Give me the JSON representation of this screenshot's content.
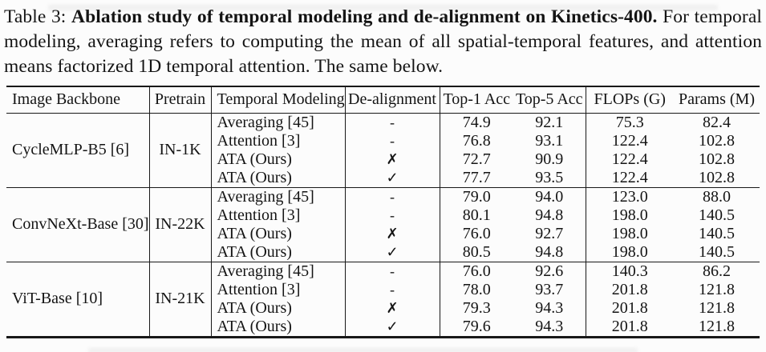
{
  "colors": {
    "ink": "#141414",
    "background": "#fcfcfc"
  },
  "caption": {
    "prefix": "Table 3: ",
    "bold": "Ablation study of temporal modeling and de-alignment on Kinetics-400.",
    "rest": " For temporal modeling, averaging refers to computing the mean of all spatial-temporal features, and attention means factorized 1D temporal attention. The same below."
  },
  "table": {
    "headers": [
      "Image Backbone",
      "Pretrain",
      "Temporal Modeling",
      "De-alignment",
      "Top-1 Acc",
      "Top-5 Acc",
      "FLOPs (G)",
      "Params (M)"
    ],
    "groups": [
      {
        "backbone": "CycleMLP-B5 [6]",
        "pretrain": "IN-1K",
        "rows": [
          {
            "modeling": "Averaging [45]",
            "dealignment": "-",
            "top1": "74.9",
            "top5": "92.1",
            "flops": "75.3",
            "params": "82.4"
          },
          {
            "modeling": "Attention [3]",
            "dealignment": "-",
            "top1": "76.8",
            "top5": "93.1",
            "flops": "122.4",
            "params": "102.8"
          },
          {
            "modeling": "ATA (Ours)",
            "dealignment": "✗",
            "top1": "72.7",
            "top5": "90.9",
            "flops": "122.4",
            "params": "102.8"
          },
          {
            "modeling": "ATA (Ours)",
            "dealignment": "✓",
            "top1": "77.7",
            "top5": "93.5",
            "flops": "122.4",
            "params": "102.8"
          }
        ]
      },
      {
        "backbone": "ConvNeXt-Base [30]",
        "pretrain": "IN-22K",
        "rows": [
          {
            "modeling": "Averaging [45]",
            "dealignment": "-",
            "top1": "79.0",
            "top5": "94.0",
            "flops": "123.0",
            "params": "88.0"
          },
          {
            "modeling": "Attention [3]",
            "dealignment": "-",
            "top1": "80.1",
            "top5": "94.8",
            "flops": "198.0",
            "params": "140.5"
          },
          {
            "modeling": "ATA (Ours)",
            "dealignment": "✗",
            "top1": "76.0",
            "top5": "92.7",
            "flops": "198.0",
            "params": "140.5"
          },
          {
            "modeling": "ATA (Ours)",
            "dealignment": "✓",
            "top1": "80.5",
            "top5": "94.8",
            "flops": "198.0",
            "params": "140.5"
          }
        ]
      },
      {
        "backbone": "ViT-Base [10]",
        "pretrain": "IN-21K",
        "rows": [
          {
            "modeling": "Averaging [45]",
            "dealignment": "-",
            "top1": "76.0",
            "top5": "92.6",
            "flops": "140.3",
            "params": "86.2"
          },
          {
            "modeling": "Attention [3]",
            "dealignment": "-",
            "top1": "78.0",
            "top5": "93.7",
            "flops": "201.8",
            "params": "121.8"
          },
          {
            "modeling": "ATA (Ours)",
            "dealignment": "✗",
            "top1": "79.3",
            "top5": "94.3",
            "flops": "201.8",
            "params": "121.8"
          },
          {
            "modeling": "ATA (Ours)",
            "dealignment": "✓",
            "top1": "79.6",
            "top5": "94.3",
            "flops": "201.8",
            "params": "121.8"
          }
        ]
      }
    ]
  }
}
